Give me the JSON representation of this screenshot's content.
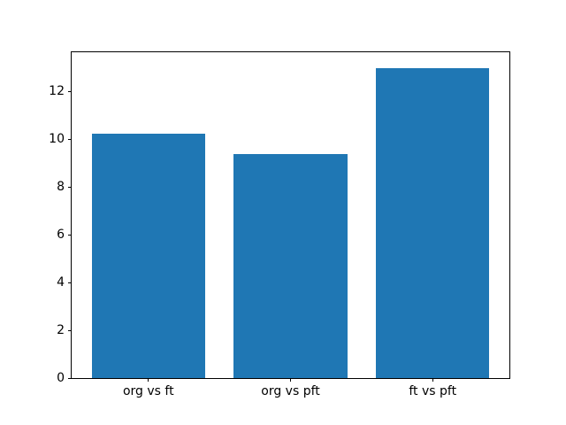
{
  "chart_data": {
    "type": "bar",
    "categories": [
      "org vs ft",
      "org vs pft",
      "ft vs pft"
    ],
    "values": [
      10.25,
      9.4,
      13.0
    ],
    "yticks": [
      0,
      2,
      4,
      6,
      8,
      10,
      12
    ],
    "ylim": [
      0,
      13.65
    ],
    "bar_color": "#1f77b4",
    "bar_width_units": 0.8,
    "grid": false,
    "legend": null,
    "background_color": "#ffffff",
    "spine_color": "#000000"
  }
}
